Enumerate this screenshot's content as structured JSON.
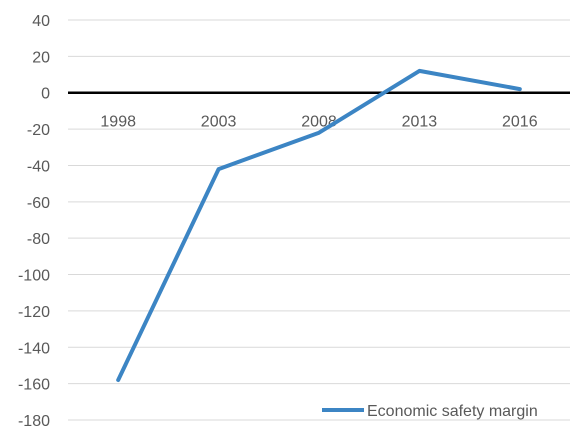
{
  "chart_data": {
    "type": "line",
    "title": "",
    "xlabel": "",
    "ylabel": "",
    "categories": [
      "1998",
      "2003",
      "2008",
      "2013",
      "2016"
    ],
    "series": [
      {
        "name": "Economic safety margin",
        "values": [
          -158,
          -42,
          -22,
          12,
          2
        ],
        "color": "#3C85C4"
      }
    ],
    "ylim": [
      -180,
      40
    ],
    "yticks": [
      40,
      20,
      0,
      -20,
      -40,
      -60,
      -80,
      -100,
      -120,
      -140,
      -160,
      -180
    ],
    "grid": true,
    "zero_line": true,
    "legend_position": "bottom-right"
  }
}
